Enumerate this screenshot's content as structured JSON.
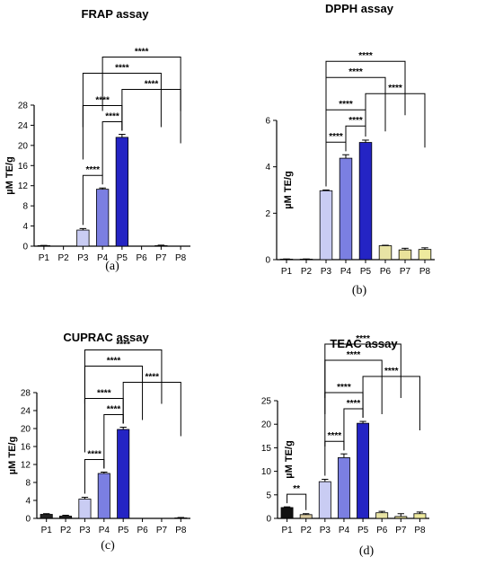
{
  "chart_data": [
    {
      "type": "bar",
      "panel_label": "(a)",
      "title": "FRAP assay",
      "ylabel": "µM TE/g",
      "categories": [
        "P1",
        "P2",
        "P3",
        "P4",
        "P5",
        "P6",
        "P7",
        "P8"
      ],
      "values": [
        0.1,
        0,
        3.2,
        11.3,
        21.6,
        0,
        0.1,
        0
      ],
      "errors": [
        0.05,
        0,
        0.3,
        0.25,
        0.6,
        0,
        0.1,
        0
      ],
      "ylim": [
        0,
        28
      ],
      "yticks": [
        0,
        4,
        8,
        12,
        16,
        20,
        24,
        28
      ],
      "colors": [
        "#222222",
        "#222222",
        "#c9ccf3",
        "#7b7fe2",
        "#2424c4",
        "#e8e3a4",
        "#e9e29a",
        "#eeea9e"
      ],
      "significance": [
        {
          "from": 2,
          "to": 3,
          "label": "****"
        },
        {
          "from": 3,
          "to": 4,
          "label": "****"
        },
        {
          "from": 4,
          "to": 7,
          "label": "****"
        },
        {
          "from": 2,
          "to": 4,
          "label": "****"
        },
        {
          "from": 2,
          "to": 6,
          "label": "****"
        },
        {
          "from": 3,
          "to": 7,
          "label": "****"
        }
      ]
    },
    {
      "type": "bar",
      "panel_label": "(b)",
      "title": "DPPH assay",
      "ylabel": "µM TE/g",
      "categories": [
        "P1",
        "P2",
        "P3",
        "P4",
        "P5",
        "P6",
        "P7",
        "P8"
      ],
      "values": [
        0.02,
        0.02,
        2.97,
        4.37,
        5.05,
        0.6,
        0.42,
        0.44
      ],
      "errors": [
        0.01,
        0.01,
        0.03,
        0.15,
        0.1,
        0.02,
        0.07,
        0.07
      ],
      "ylim": [
        0,
        6
      ],
      "yticks": [
        0,
        2,
        4,
        6
      ],
      "colors": [
        "#222222",
        "#222222",
        "#c9ccf3",
        "#7b7fe2",
        "#2424c4",
        "#e8e3a4",
        "#e9e29a",
        "#eeea9e"
      ],
      "significance": [
        {
          "from": 2,
          "to": 3,
          "label": "****"
        },
        {
          "from": 3,
          "to": 4,
          "label": "****"
        },
        {
          "from": 4,
          "to": 7,
          "label": "****"
        },
        {
          "from": 2,
          "to": 4,
          "label": "****"
        },
        {
          "from": 2,
          "to": 5,
          "label": "****"
        },
        {
          "from": 2,
          "to": 6,
          "label": "****"
        }
      ]
    },
    {
      "type": "bar",
      "panel_label": "(c)",
      "title": "CUPRAC assay",
      "ylabel": "µM TE/g",
      "categories": [
        "P1",
        "P2",
        "P3",
        "P4",
        "P5",
        "P6",
        "P7",
        "P8"
      ],
      "values": [
        0.9,
        0.5,
        4.3,
        10.0,
        19.8,
        0,
        0,
        0.1
      ],
      "errors": [
        0.15,
        0.2,
        0.4,
        0.3,
        0.5,
        0,
        0,
        0.1
      ],
      "ylim": [
        0,
        28
      ],
      "yticks": [
        0,
        4,
        8,
        12,
        16,
        20,
        24,
        28
      ],
      "colors": [
        "#222222",
        "#222222",
        "#c9ccf3",
        "#7b7fe2",
        "#2424c4",
        "#e8e3a4",
        "#e9e29a",
        "#eeea9e"
      ],
      "significance": [
        {
          "from": 2,
          "to": 3,
          "label": "****"
        },
        {
          "from": 3,
          "to": 4,
          "label": "****"
        },
        {
          "from": 4,
          "to": 7,
          "label": "****"
        },
        {
          "from": 2,
          "to": 4,
          "label": "****"
        },
        {
          "from": 2,
          "to": 5,
          "label": "****"
        },
        {
          "from": 2,
          "to": 6,
          "label": "****"
        }
      ]
    },
    {
      "type": "bar",
      "panel_label": "(d)",
      "title": "TEAC assay",
      "ylabel": "µM TE/g",
      "categories": [
        "P1",
        "P2",
        "P3",
        "P4",
        "P5",
        "P6",
        "P7",
        "P8"
      ],
      "values": [
        2.3,
        0.8,
        7.8,
        12.9,
        20.2,
        1.2,
        0.4,
        1.0
      ],
      "errors": [
        0.15,
        0.2,
        0.5,
        0.8,
        0.4,
        0.3,
        0.6,
        0.35
      ],
      "ylim": [
        0,
        25
      ],
      "yticks": [
        0,
        5,
        10,
        15,
        20,
        25
      ],
      "colors": [
        "#111111",
        "#d8c9a0",
        "#c9ccf3",
        "#7b7fe2",
        "#2424c4",
        "#e8e3a4",
        "#e9e29a",
        "#eeea9e"
      ],
      "significance": [
        {
          "from": 0,
          "to": 1,
          "label": "**"
        },
        {
          "from": 2,
          "to": 3,
          "label": "****"
        },
        {
          "from": 3,
          "to": 4,
          "label": "****"
        },
        {
          "from": 4,
          "to": 7,
          "label": "****"
        },
        {
          "from": 2,
          "to": 4,
          "label": "****"
        },
        {
          "from": 2,
          "to": 5,
          "label": "****"
        },
        {
          "from": 2,
          "to": 6,
          "label": "****"
        }
      ]
    }
  ]
}
